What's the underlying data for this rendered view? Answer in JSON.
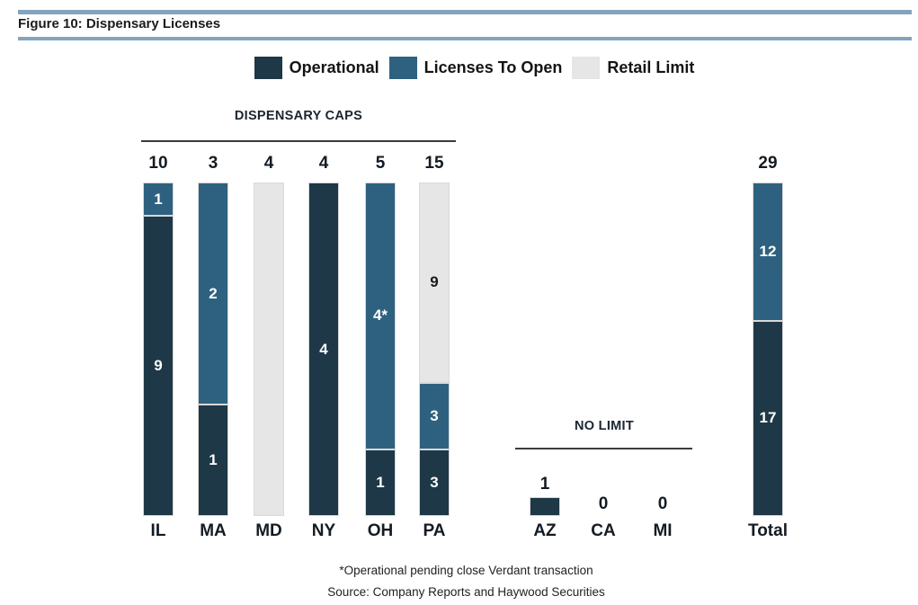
{
  "figure": {
    "title": "Figure 10: Dispensary Licenses"
  },
  "legend": {
    "items": [
      {
        "key": "operational",
        "label": "Operational"
      },
      {
        "key": "licenses_to_open",
        "label": "Licenses To Open"
      },
      {
        "key": "retail_limit",
        "label": "Retail Limit"
      }
    ]
  },
  "sections": {
    "caps_title": "DISPENSARY CAPS",
    "no_limit_title": "NO LIMIT"
  },
  "colors": {
    "operational": "#1e3847",
    "licenses_to_open": "#2e6180",
    "retail_limit": "#e6e6e6",
    "rule": "#84a3bd",
    "section_line": "#3b3b3b"
  },
  "footnotes": {
    "line1": "*Operational pending close Verdant transaction",
    "line2": "Source: Company Reports and Haywood Securities"
  },
  "chart_data": {
    "type": "bar",
    "subtype": "stacked-percent-of-cap",
    "title": "Figure 10: Dispensary Licenses",
    "legend_entries": [
      "Operational",
      "Licenses To Open",
      "Retail Limit"
    ],
    "legend_position": "top",
    "groups": [
      {
        "name": "DISPENSARY CAPS",
        "bars": [
          {
            "state": "IL",
            "cap": 10,
            "segments": [
              {
                "series": "licenses_to_open",
                "value": 1,
                "label": "1"
              },
              {
                "series": "operational",
                "value": 9,
                "label": "9"
              }
            ]
          },
          {
            "state": "MA",
            "cap": 3,
            "segments": [
              {
                "series": "licenses_to_open",
                "value": 2,
                "label": "2"
              },
              {
                "series": "operational",
                "value": 1,
                "label": "1"
              }
            ]
          },
          {
            "state": "MD",
            "cap": 4,
            "segments": [
              {
                "series": "retail_limit",
                "value": 4,
                "label": ""
              }
            ]
          },
          {
            "state": "NY",
            "cap": 4,
            "segments": [
              {
                "series": "operational",
                "value": 4,
                "label": "4"
              }
            ]
          },
          {
            "state": "OH",
            "cap": 5,
            "segments": [
              {
                "series": "licenses_to_open",
                "value": 4,
                "label": "4*"
              },
              {
                "series": "operational",
                "value": 1,
                "label": "1"
              }
            ]
          },
          {
            "state": "PA",
            "cap": 15,
            "segments": [
              {
                "series": "retail_limit",
                "value": 9,
                "label": "9"
              },
              {
                "series": "licenses_to_open",
                "value": 3,
                "label": "3"
              },
              {
                "series": "operational",
                "value": 3,
                "label": "3"
              }
            ]
          }
        ]
      },
      {
        "name": "NO LIMIT",
        "bars": [
          {
            "state": "AZ",
            "value": 1,
            "label": "1"
          },
          {
            "state": "CA",
            "value": 0,
            "label": "0"
          },
          {
            "state": "MI",
            "value": 0,
            "label": "0"
          }
        ]
      },
      {
        "name": "TOTAL",
        "bars": [
          {
            "state": "Total",
            "cap": 29,
            "segments": [
              {
                "series": "licenses_to_open",
                "value": 12,
                "label": "12"
              },
              {
                "series": "operational",
                "value": 17,
                "label": "17"
              }
            ]
          }
        ]
      }
    ],
    "footnote": "*Operational pending close Verdant transaction",
    "source": "Source: Company Reports and Haywood Securities"
  }
}
